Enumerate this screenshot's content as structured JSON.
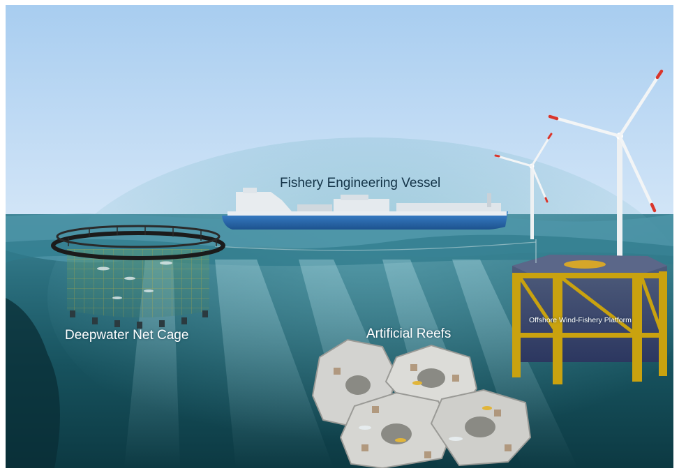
{
  "labels": {
    "vessel": "Fishery Engineering Vessel",
    "cage": "Deepwater Net Cage",
    "reefs": "Artificial Reefs",
    "platform": "Offshore Wind-Fishery Platform"
  },
  "colors": {
    "sky_top": "#a8cdf0",
    "sky_bottom": "#cfe3f7",
    "sea_surface": "#4a8fa3",
    "sea_deep": "#0f4a56",
    "hull": "#2a6db5",
    "platform_frame": "#c9a20f",
    "platform_deck": "#3b4a78",
    "reef_concrete": "#d5d5d2",
    "label_dark": "#123246",
    "label_light": "#ffffff"
  },
  "icons": {
    "vessel": "ship-icon",
    "cage": "net-cage-icon",
    "reefs": "artificial-reef-icon",
    "platform": "wind-turbine-icon"
  }
}
